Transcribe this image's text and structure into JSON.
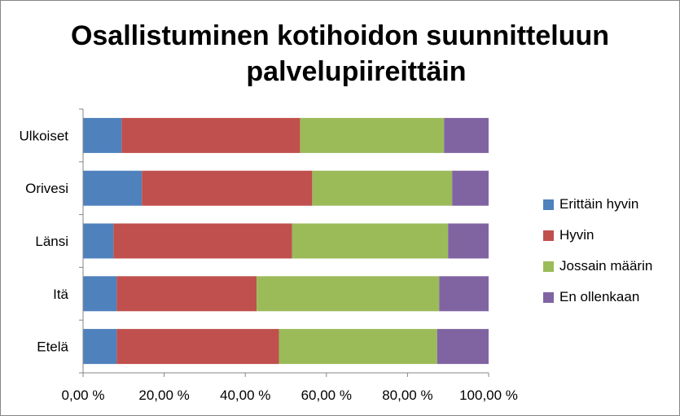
{
  "chart_data": {
    "type": "bar",
    "orientation": "horizontal",
    "stacked": "percent",
    "title": [
      "Osallistuminen kotihoidon suunnitteluun",
      "palvelupiireittäin"
    ],
    "categories": [
      "Ulkoiset",
      "Orivesi",
      "Länsi",
      "Itä",
      "Etelä"
    ],
    "series": [
      {
        "name": "Erittäin hyvin",
        "color": "#4F81BD",
        "values": [
          9.5,
          14.5,
          7.5,
          8.3,
          8.3
        ]
      },
      {
        "name": "Hyvin",
        "color": "#C0504D",
        "values": [
          44.0,
          42.0,
          44.0,
          34.5,
          40.0
        ]
      },
      {
        "name": "Jossain määrin",
        "color": "#9BBB59",
        "values": [
          35.5,
          34.5,
          38.5,
          45.0,
          39.0
        ]
      },
      {
        "name": "En ollenkaan",
        "color": "#8064A2",
        "values": [
          11.0,
          9.0,
          10.0,
          12.2,
          12.7
        ]
      }
    ],
    "xlim": [
      0,
      100
    ],
    "xticks": [
      "0,00 %",
      "20,00 %",
      "40,00 %",
      "60,00 %",
      "80,00 %",
      "100,00 %"
    ],
    "grid": false,
    "legend_position": "right"
  }
}
